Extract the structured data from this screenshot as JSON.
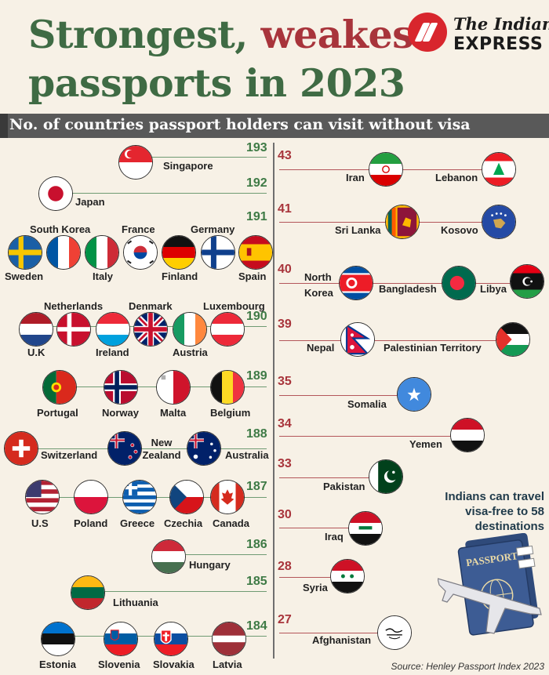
{
  "header": {
    "title_line1_green": "Strongest,",
    "title_line1_red": "weakest",
    "title_line2": "passports in 2023",
    "subtitle": "No. of countries passport holders can visit without visa"
  },
  "logo": {
    "line1": "The Indian",
    "line2": "EXPRESS"
  },
  "colors": {
    "green": "#3e7a45",
    "red": "#a8343b",
    "band": "#595959",
    "background": "#f7f1e6"
  },
  "strongest": [
    {
      "score": "193",
      "countries": [
        "Singapore"
      ]
    },
    {
      "score": "192",
      "countries": [
        "Japan"
      ]
    },
    {
      "score": "191",
      "countries": [
        "South Korea",
        "France",
        "Germany",
        "Sweden",
        "Italy",
        "Finland",
        "Spain"
      ]
    },
    {
      "score": "190",
      "countries": [
        "Netherlands",
        "Denmark",
        "Luxembourg",
        "U.K",
        "Ireland",
        "Austria"
      ]
    },
    {
      "score": "189",
      "countries": [
        "Portugal",
        "Norway",
        "Malta",
        "Belgium"
      ]
    },
    {
      "score": "188",
      "countries": [
        "Switzerland",
        "New Zealand",
        "Australia"
      ]
    },
    {
      "score": "187",
      "countries": [
        "U.S",
        "Poland",
        "Greece",
        "Czechia",
        "Canada"
      ]
    },
    {
      "score": "186",
      "countries": [
        "Hungary"
      ]
    },
    {
      "score": "185",
      "countries": [
        "Lithuania"
      ]
    },
    {
      "score": "184",
      "countries": [
        "Estonia",
        "Slovenia",
        "Slovakia",
        "Latvia"
      ]
    }
  ],
  "weakest": [
    {
      "score": "43",
      "countries": [
        "Iran",
        "Lebanon"
      ]
    },
    {
      "score": "41",
      "countries": [
        "Sri Lanka",
        "Kosovo"
      ]
    },
    {
      "score": "40",
      "countries": [
        "North Korea",
        "Bangladesh",
        "Libya"
      ]
    },
    {
      "score": "39",
      "countries": [
        "Nepal",
        "Palestinian Territory"
      ]
    },
    {
      "score": "35",
      "countries": [
        "Somalia"
      ]
    },
    {
      "score": "34",
      "countries": [
        "Yemen"
      ]
    },
    {
      "score": "33",
      "countries": [
        "Pakistan"
      ]
    },
    {
      "score": "30",
      "countries": [
        "Iraq"
      ]
    },
    {
      "score": "28",
      "countries": [
        "Syria"
      ]
    },
    {
      "score": "27",
      "countries": [
        "Afghanistan"
      ]
    }
  ],
  "india_note": "Indians can travel visa-free to 58 destinations",
  "passport_text": "PASSPORT",
  "source": "Source:  Henley Passport Index 2023"
}
